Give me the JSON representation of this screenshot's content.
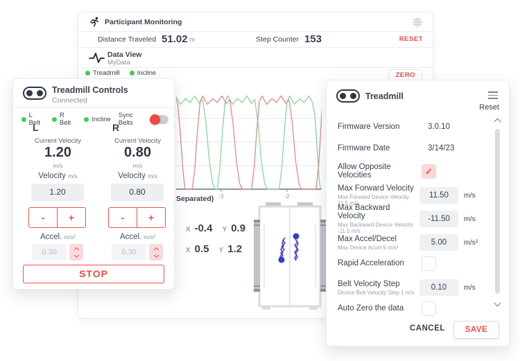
{
  "colors": {
    "accent_red": "#ee4b45",
    "status_green": "#3fd14f",
    "chart_green": "#8fd8a3",
    "chart_red": "#e09191",
    "cop_blue": "#3a3ad0"
  },
  "monitor": {
    "title": "Participant Monitoring",
    "distance_label": "Distance Traveled",
    "distance_value": "51.02",
    "distance_unit": "m",
    "steps_label": "Step Counter",
    "steps_value": "153",
    "reset_label": "RESET",
    "dataview_title": "Data View",
    "dataview_subtitle": "MyData",
    "legend": [
      {
        "label": "Treadmill"
      },
      {
        "label": "Incline"
      }
    ],
    "zero_label": "ZERO",
    "separated_label": "Separated)",
    "readouts": {
      "x_label": "X",
      "y_label": "Y",
      "row1_x": "-0.4",
      "row1_y": "0.9",
      "row2_x": "0.5",
      "row2_y": "1.2"
    }
  },
  "chart_data": {
    "type": "line",
    "title": "",
    "xlabel": "",
    "ylabel": "",
    "xlim": [
      -3.684,
      -1.474
    ],
    "ylim": [
      0,
      1.1
    ],
    "grid": true,
    "gridlines_y": [
      0.25,
      0.5,
      0.75
    ],
    "x_ticks": [
      {
        "v": -3,
        "label": "-3"
      },
      {
        "v": -2,
        "label": "-2"
      }
    ],
    "legend_position": "none",
    "series": [
      {
        "name": "green-trace",
        "color": "#8fd8a3",
        "points": [
          [
            -3.85,
            0
          ],
          [
            -3.81,
            0.22
          ],
          [
            -3.77,
            0.62
          ],
          [
            -3.73,
            0.93
          ],
          [
            -3.69,
            0.99
          ],
          [
            -3.62,
            0.9
          ],
          [
            -3.54,
            0.96
          ],
          [
            -3.47,
            0.92
          ],
          [
            -3.4,
            0.99
          ],
          [
            -3.33,
            0.91
          ],
          [
            -3.28,
            0.95
          ],
          [
            -3.23,
            0.7
          ],
          [
            -3.18,
            0.3
          ],
          [
            -3.13,
            0.06
          ],
          [
            -3.09,
            0
          ],
          [
            -3.06,
            0
          ],
          [
            -3.02,
            0.22
          ],
          [
            -2.98,
            0.62
          ],
          [
            -2.94,
            0.93
          ],
          [
            -2.9,
            0.99
          ],
          [
            -2.83,
            0.9
          ],
          [
            -2.75,
            0.96
          ],
          [
            -2.68,
            0.92
          ],
          [
            -2.61,
            0.99
          ],
          [
            -2.54,
            0.91
          ],
          [
            -2.49,
            0.95
          ],
          [
            -2.44,
            0.7
          ],
          [
            -2.39,
            0.3
          ],
          [
            -2.34,
            0.06
          ],
          [
            -2.3,
            0
          ],
          [
            -2.12,
            0
          ],
          [
            -2.08,
            0.22
          ],
          [
            -2.04,
            0.62
          ],
          [
            -2.0,
            0.93
          ],
          [
            -1.96,
            0.99
          ],
          [
            -1.89,
            0.9
          ],
          [
            -1.81,
            0.96
          ],
          [
            -1.74,
            0.92
          ],
          [
            -1.67,
            0.99
          ],
          [
            -1.62,
            0.93
          ],
          [
            -1.58,
            0.8
          ],
          [
            -1.54,
            0.4
          ],
          [
            -1.51,
            0.08
          ],
          [
            -1.49,
            0
          ]
        ]
      },
      {
        "name": "red-trace",
        "color": "#e09191",
        "points": [
          [
            -3.7,
            0.99
          ],
          [
            -3.66,
            0.9
          ],
          [
            -3.62,
            0.6
          ],
          [
            -3.58,
            0.2
          ],
          [
            -3.55,
            0
          ],
          [
            -3.44,
            0
          ],
          [
            -3.4,
            0.22
          ],
          [
            -3.36,
            0.62
          ],
          [
            -3.32,
            0.93
          ],
          [
            -3.28,
            0.99
          ],
          [
            -3.21,
            0.9
          ],
          [
            -3.13,
            0.96
          ],
          [
            -3.06,
            0.92
          ],
          [
            -2.99,
            0.99
          ],
          [
            -2.92,
            0.91
          ],
          [
            -2.87,
            0.95
          ],
          [
            -2.82,
            0.7
          ],
          [
            -2.77,
            0.3
          ],
          [
            -2.72,
            0.06
          ],
          [
            -2.68,
            0
          ],
          [
            -2.54,
            0
          ],
          [
            -2.5,
            0.22
          ],
          [
            -2.46,
            0.62
          ],
          [
            -2.42,
            0.93
          ],
          [
            -2.38,
            0.99
          ],
          [
            -2.31,
            0.9
          ],
          [
            -2.23,
            0.96
          ],
          [
            -2.16,
            0.92
          ],
          [
            -2.09,
            0.99
          ],
          [
            -2.02,
            0.91
          ],
          [
            -1.97,
            0.95
          ],
          [
            -1.92,
            0.7
          ],
          [
            -1.87,
            0.3
          ],
          [
            -1.82,
            0.06
          ],
          [
            -1.78,
            0
          ],
          [
            -1.56,
            0
          ],
          [
            -1.52,
            0.25
          ],
          [
            -1.49,
            0.6
          ],
          [
            -1.47,
            0.85
          ]
        ]
      }
    ]
  },
  "controls": {
    "title": "Treadmill Controls",
    "subtitle": "Connected",
    "status": [
      {
        "label": "L Belt"
      },
      {
        "label": "R Belt"
      },
      {
        "label": "Incline"
      }
    ],
    "sync_label": "Sync Belts",
    "belts": [
      {
        "side": "L",
        "current_label": "Current Velocity",
        "current_value": "1.20",
        "current_unit": "m/s",
        "velocity_label": "Velocity",
        "velocity_unit": "m/s",
        "velocity_value": "1.20",
        "minus": "-",
        "plus": "+",
        "accel_label": "Accel.",
        "accel_unit": "m/s²",
        "accel_value": "0.30"
      },
      {
        "side": "R",
        "current_label": "Current Velocity",
        "current_value": "0.80",
        "current_unit": "m/s",
        "velocity_label": "Velocity",
        "velocity_unit": "m/s",
        "velocity_value": "0.80",
        "minus": "-",
        "plus": "+",
        "accel_label": "Accel.",
        "accel_unit": "m/s²",
        "accel_value": "0.30"
      }
    ],
    "stop_label": "STOP"
  },
  "settings": {
    "title": "Treadmill",
    "reset_label": "Reset",
    "check_glyph": "✓",
    "rows": [
      {
        "type": "text",
        "label": "Firmware Version",
        "value": "3.0.10"
      },
      {
        "type": "text",
        "label": "Firmware Date",
        "value": "3/14/23"
      },
      {
        "type": "checkbox",
        "label": "Allow Opposite Velocities",
        "checked": true
      },
      {
        "type": "input",
        "label": "Max Forward Velocity",
        "sub": "Max Forward Device Velocity 11.5 m/s",
        "value": "11.50",
        "unit": "m/s"
      },
      {
        "type": "input",
        "label": "Max Backward Velocity",
        "sub": "Max Backward Device Velocity -11.5 m/s",
        "value": "-11.50",
        "unit": "m/s"
      },
      {
        "type": "input",
        "label": "Max Accel/Decel",
        "sub": "Max Device Accel 5 m/s²",
        "value": "5.00",
        "unit": "m/s²"
      },
      {
        "type": "checkbox",
        "label": "Rapid Acceleration",
        "checked": false
      },
      {
        "type": "input",
        "label": "Belt Velocity Step",
        "sub": "Device Belt Velocity Step 1 m/s",
        "value": "0.10",
        "unit": "m/s"
      },
      {
        "type": "checkbox",
        "label": "Auto Zero the data",
        "checked": false
      }
    ],
    "cancel_label": "CANCEL",
    "save_label": "SAVE"
  }
}
